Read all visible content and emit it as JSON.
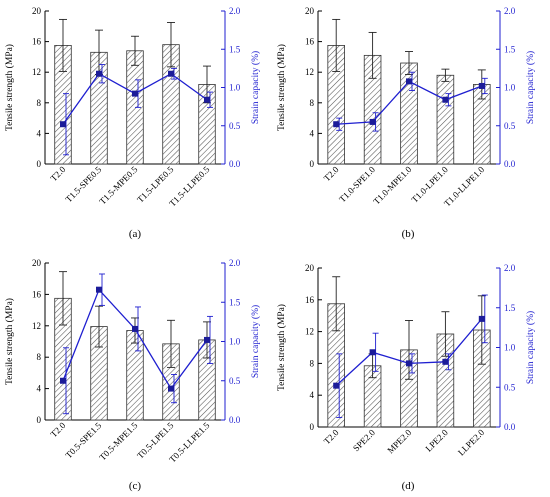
{
  "chart_data": [
    {
      "type": "bar",
      "panel_label": "(a)",
      "ylabel": "Tensile strength (MPa)",
      "y2label": "Strain capacity (%)",
      "ylim": [
        0,
        20
      ],
      "y2lim": [
        0,
        2.0
      ],
      "yticks": [
        "0",
        "4",
        "8",
        "12",
        "16",
        "20"
      ],
      "y2ticks": [
        "0.0",
        "0.5",
        "1.0",
        "1.5",
        "2.0"
      ],
      "categories": [
        "T2.0",
        "T1.5-SPE0.5",
        "T1.5-MPE0.5",
        "T1.5-LPE0.5",
        "T1.5-LLPE0.5"
      ],
      "series": [
        {
          "values": [
            15.5,
            14.6,
            14.8,
            15.6,
            10.4
          ],
          "errors": [
            3.4,
            2.9,
            1.9,
            2.9,
            2.4
          ]
        },
        {
          "values": [
            0.52,
            1.18,
            0.92,
            1.18,
            0.84
          ],
          "errors": [
            0.4,
            0.12,
            0.18,
            0.07,
            0.1
          ]
        }
      ]
    },
    {
      "type": "bar",
      "panel_label": "(b)",
      "ylabel": "Tensile strength (MPa)",
      "y2label": "Strain capacity (%)",
      "ylim": [
        0,
        20
      ],
      "y2lim": [
        0,
        2.0
      ],
      "yticks": [
        "0",
        "4",
        "8",
        "12",
        "16",
        "20"
      ],
      "y2ticks": [
        "0.0",
        "0.5",
        "1.0",
        "1.5",
        "2.0"
      ],
      "categories": [
        "T2.0",
        "T1.0-SPE1.0",
        "T1.0-MPE1.0",
        "T1.0-LPE1.0",
        "T1.0-LLPE1.0"
      ],
      "series": [
        {
          "values": [
            15.5,
            14.2,
            13.2,
            11.6,
            10.4
          ],
          "errors": [
            3.4,
            3.0,
            1.5,
            0.8,
            1.9
          ]
        },
        {
          "values": [
            0.52,
            0.55,
            1.08,
            0.84,
            1.02
          ],
          "errors": [
            0.08,
            0.12,
            0.12,
            0.08,
            0.1
          ]
        }
      ]
    },
    {
      "type": "bar",
      "panel_label": "(c)",
      "ylabel": "Tensile strength (MPa)",
      "y2label": "Strain capacity (%)",
      "ylim": [
        0,
        20
      ],
      "y2lim": [
        0,
        2.0
      ],
      "yticks": [
        "0",
        "4",
        "8",
        "12",
        "16",
        "20"
      ],
      "y2ticks": [
        "0.0",
        "0.5",
        "1.0",
        "1.5",
        "2.0"
      ],
      "categories": [
        "T2.0",
        "T0.5-SPE1.5",
        "T0.5-MPE1.5",
        "T0.5-LPE1.5",
        "T0.5-LLPE1.5"
      ],
      "series": [
        {
          "values": [
            15.5,
            11.9,
            11.4,
            9.7,
            10.2
          ],
          "errors": [
            3.4,
            2.6,
            1.6,
            3.0,
            2.3
          ]
        },
        {
          "values": [
            0.5,
            1.66,
            1.16,
            0.4,
            1.02
          ],
          "errors": [
            0.42,
            0.2,
            0.28,
            0.18,
            0.3
          ]
        }
      ]
    },
    {
      "type": "bar",
      "panel_label": "(d)",
      "ylabel": "Tensile strength (MPa)",
      "y2label": "Strain capacity (%)",
      "ylim": [
        0,
        20
      ],
      "y2lim": [
        0,
        2.0
      ],
      "yticks": [
        "0",
        "4",
        "8",
        "12",
        "16",
        "20"
      ],
      "y2ticks": [
        "0.0",
        "0.5",
        "1.0",
        "1.5",
        "2.0"
      ],
      "categories": [
        "T2.0",
        "SPE2.0",
        "MPE2.0",
        "LPE2.0",
        "LLPE2.0"
      ],
      "series": [
        {
          "values": [
            15.5,
            7.7,
            9.7,
            11.7,
            12.2
          ],
          "errors": [
            3.4,
            1.5,
            3.7,
            2.8,
            4.3
          ]
        },
        {
          "values": [
            0.52,
            0.94,
            0.8,
            0.82,
            1.36
          ],
          "errors": [
            0.4,
            0.24,
            0.12,
            0.1,
            0.3
          ]
        }
      ]
    }
  ],
  "colors": {
    "bar_outline": "#333333",
    "hatch": "#555555",
    "strain_line": "#1f1fd0",
    "axis": "#000000",
    "right_axis": "#1f1fd0"
  }
}
